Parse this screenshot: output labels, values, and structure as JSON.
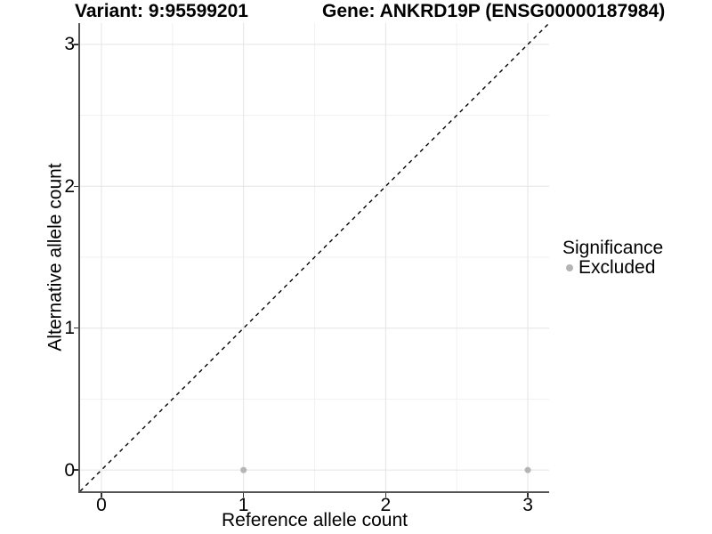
{
  "titles": {
    "left": "Variant: 9:95599201",
    "right": "Gene: ANKRD19P (ENSG00000187984)"
  },
  "legend": {
    "title": "Significance",
    "items": [
      {
        "label": "Excluded",
        "color": "#b5b5b5"
      }
    ]
  },
  "colors": {
    "background": "#ffffff",
    "grid_major": "#e4e4e4",
    "grid_minor": "#f1f1f1",
    "axis_line": "#555555",
    "tick_mark": "#333333",
    "text": "#000000",
    "identity_line": "#000000",
    "point": "#b5b5b5"
  },
  "chart_data": {
    "type": "scatter",
    "title_left": "Variant: 9:95599201",
    "title_right": "Gene: ANKRD19P (ENSG00000187984)",
    "xlabel": "Reference allele count",
    "ylabel": "Alternative allele count",
    "xlim": [
      -0.15,
      3.15
    ],
    "ylim": [
      -0.15,
      3.15
    ],
    "x_ticks": [
      0,
      1,
      2,
      3
    ],
    "y_ticks": [
      0,
      1,
      2,
      3
    ],
    "x_minor_ticks": [
      0.5,
      1.5,
      2.5
    ],
    "y_minor_ticks": [
      0.5,
      1.5,
      2.5
    ],
    "grid": "major+minor",
    "legend_position": "right",
    "reference_line": {
      "type": "identity",
      "slope": 1,
      "intercept": 0,
      "style": "dashed",
      "color": "#000000"
    },
    "series": [
      {
        "name": "Excluded",
        "color": "#b5b5b5",
        "points": [
          [
            1,
            0
          ],
          [
            3,
            0
          ]
        ]
      }
    ]
  }
}
